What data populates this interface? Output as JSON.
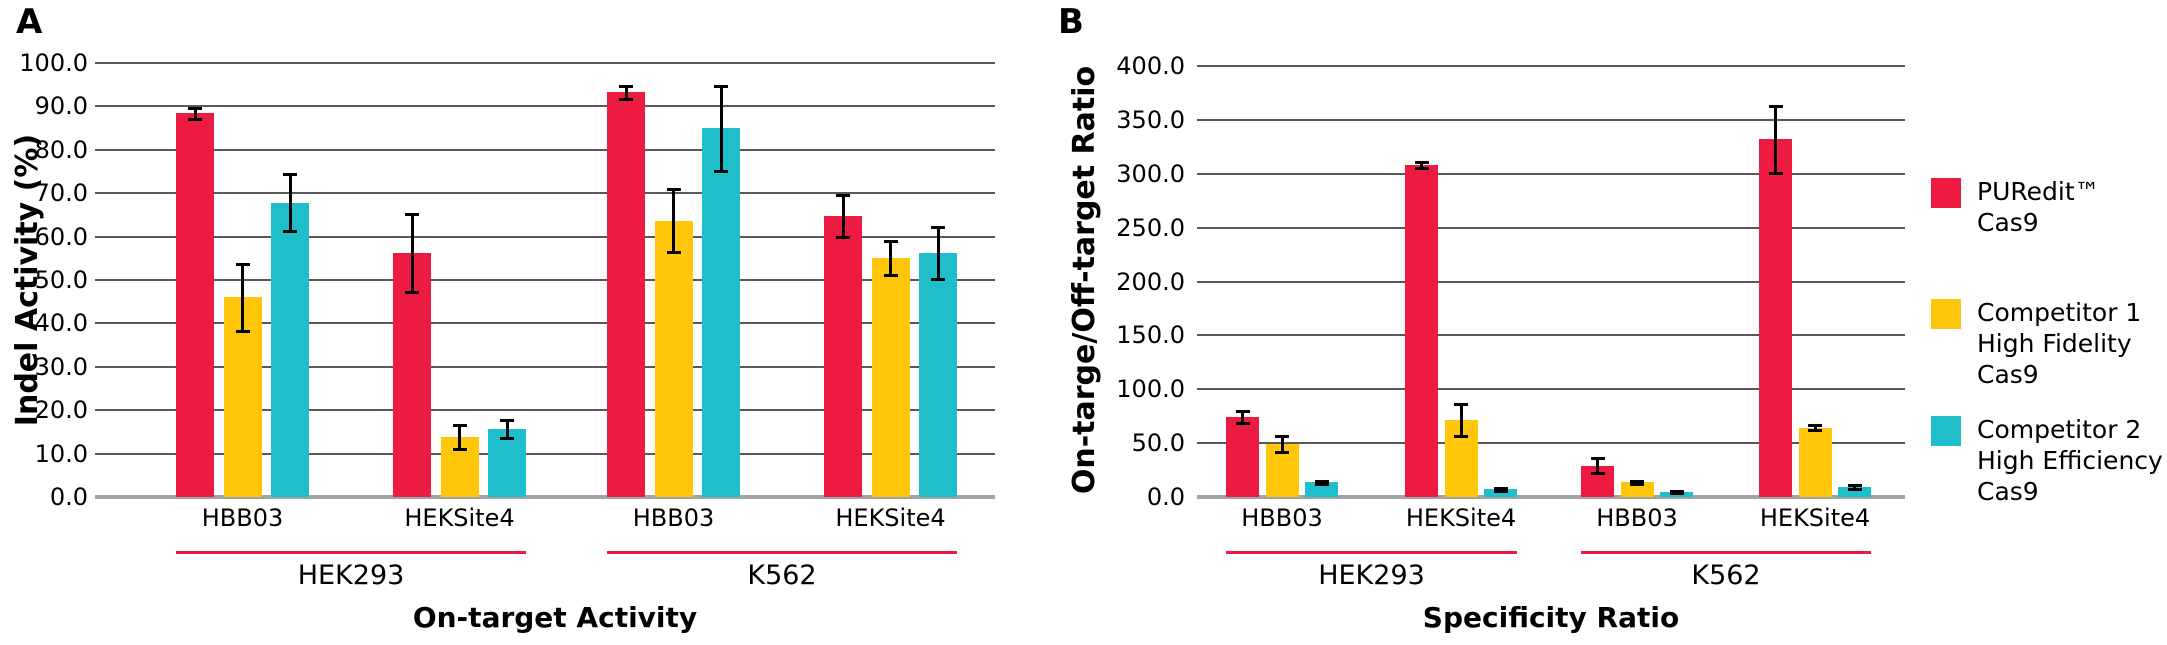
{
  "colors": {
    "red": "#ED1B42",
    "yellow": "#FFC60A",
    "cyan": "#1EBFCA",
    "underline": "#ED1B42",
    "gridline": "#595959",
    "baseline": "#a3a3a3",
    "error_bar": "#000000",
    "text": "#000000"
  },
  "legend": {
    "items": [
      {
        "name": "puredit-cas9",
        "color_key": "red",
        "label_lines": [
          "PURedit™",
          "Cas9"
        ]
      },
      {
        "name": "competitor-1-high-fidelity-cas9",
        "color_key": "yellow",
        "label_lines": [
          "Competitor 1",
          "High Fidelity",
          "Cas9"
        ]
      },
      {
        "name": "competitor-2-high-efficiency-cas9",
        "color_key": "cyan",
        "label_lines": [
          "Competitor 2",
          "High Efficiency",
          "Cas9"
        ]
      }
    ]
  },
  "chart_data": [
    {
      "type": "bar",
      "panel_letter": "A",
      "ylabel": "Indel Activity (%)",
      "xlabel": "On-target Activity",
      "ylim": [
        0,
        100
      ],
      "ytick_step": 10,
      "ytick_labels": [
        "0.0",
        "10.0",
        "20.0",
        "30.0",
        "40.0",
        "50.0",
        "60.0",
        "70.0",
        "80.0",
        "90.0",
        "100.0"
      ],
      "grid": true,
      "legend_position": "right-of-figure",
      "group_labels": [
        "HBB03",
        "HEKSite4",
        "HBB03",
        "HEKSite4"
      ],
      "cell_lines": [
        {
          "label": "HEK293",
          "groups": [
            0,
            1
          ]
        },
        {
          "label": "K562",
          "groups": [
            2,
            3
          ]
        }
      ],
      "series": [
        {
          "name": "PURedit™ Cas9",
          "color_key": "red",
          "values": [
            88.4,
            56.2,
            93.3,
            64.8
          ],
          "errors": [
            1.2,
            9.0,
            1.5,
            4.8
          ]
        },
        {
          "name": "Competitor 1 High Fidelity Cas9",
          "color_key": "yellow",
          "values": [
            46.0,
            13.8,
            63.7,
            55.1
          ],
          "errors": [
            7.8,
            2.8,
            7.2,
            4.0
          ]
        },
        {
          "name": "Competitor 2 High Efficiency Cas9",
          "color_key": "cyan",
          "values": [
            67.8,
            15.7,
            85.0,
            56.3
          ],
          "errors": [
            6.6,
            2.0,
            9.8,
            6.0
          ]
        }
      ]
    },
    {
      "type": "bar",
      "panel_letter": "B",
      "ylabel": "On-targe/Off-target Ratio",
      "xlabel": "Specificity Ratio",
      "ylim": [
        0,
        400
      ],
      "ytick_step": 50,
      "ytick_labels": [
        "0.0",
        "50.0",
        "100.0",
        "150.0",
        "200.0",
        "250.0",
        "300.0",
        "350.0",
        "400.0"
      ],
      "grid": true,
      "legend_position": "right-of-figure",
      "group_labels": [
        "HBB03",
        "HEKSite4",
        "HBB03",
        "HEKSite4"
      ],
      "cell_lines": [
        {
          "label": "HEK293",
          "groups": [
            0,
            1
          ]
        },
        {
          "label": "K562",
          "groups": [
            2,
            3
          ]
        }
      ],
      "series": [
        {
          "name": "PURedit™ Cas9",
          "color_key": "red",
          "values": [
            74.0,
            308.0,
            29.0,
            332.0
          ],
          "errors": [
            5.5,
            2.5,
            7.0,
            31.0
          ]
        },
        {
          "name": "Competitor 1 High Fidelity Cas9",
          "color_key": "yellow",
          "values": [
            49.5,
            71.5,
            13.5,
            64.5
          ],
          "errors": [
            7.5,
            14.5,
            1.5,
            2.5
          ]
        },
        {
          "name": "Competitor 2 High Efficiency Cas9",
          "color_key": "cyan",
          "values": [
            13.5,
            7.0,
            4.5,
            9.5
          ],
          "errors": [
            1.8,
            1.2,
            1.2,
            2.0
          ]
        }
      ]
    }
  ]
}
